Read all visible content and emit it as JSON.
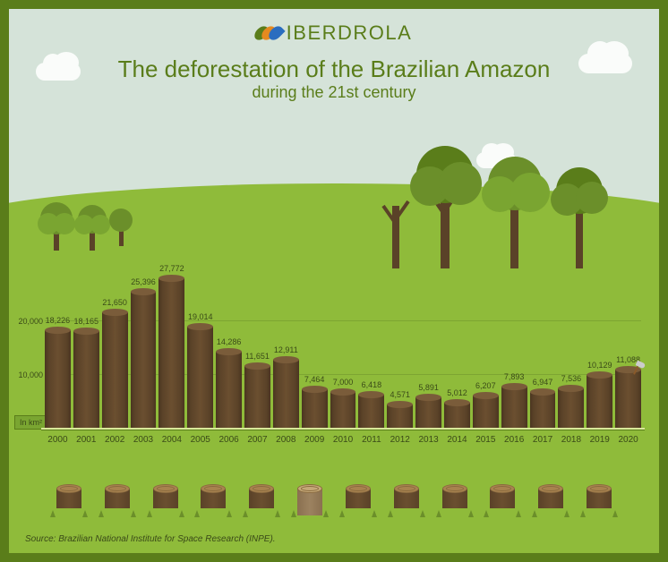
{
  "brand": "IBERDROLA",
  "title": "The deforestation of the Brazilian Amazon",
  "subtitle": "during the 21st century",
  "source": "Source: Brazilian National Institute for Space Research (INPE).",
  "chart": {
    "type": "bar",
    "unit_label": "In km²",
    "y_ticks": [
      10000,
      20000
    ],
    "y_tick_labels": [
      "10,000",
      "20,000"
    ],
    "y_max": 28000,
    "categories": [
      "2000",
      "2001",
      "2002",
      "2003",
      "2004",
      "2005",
      "2006",
      "2007",
      "2008",
      "2009",
      "2010",
      "2011",
      "2012",
      "2013",
      "2014",
      "2015",
      "2016",
      "2017",
      "2018",
      "2019",
      "2020"
    ],
    "values": [
      18226,
      18165,
      21650,
      25396,
      27772,
      19014,
      14286,
      11651,
      12911,
      7464,
      7000,
      6418,
      4571,
      5891,
      5012,
      6207,
      7893,
      6947,
      7536,
      10129,
      11088
    ],
    "value_labels": [
      "18,226",
      "18,165",
      "21,650",
      "25,396",
      "27,772",
      "19,014",
      "14,286",
      "11,651",
      "12,911",
      "7,464",
      "7,000",
      "6,418",
      "4,571",
      "5,891",
      "5,012",
      "6,207",
      "7,893",
      "6,947",
      "7,536",
      "10,129",
      "11,088"
    ],
    "bar_color": "#5a4228",
    "bar_top_color": "#7a5c3a",
    "grid_color": "#6b8f2a",
    "text_color": "#3a4a18",
    "background_top": "#d5e3d9",
    "background_bottom": "#8fbb3a",
    "frame_border": "#5a7d1a",
    "label_fontsize": 10,
    "value_fontsize": 9,
    "last_bar_has_axe": true
  },
  "stump_count": 12
}
